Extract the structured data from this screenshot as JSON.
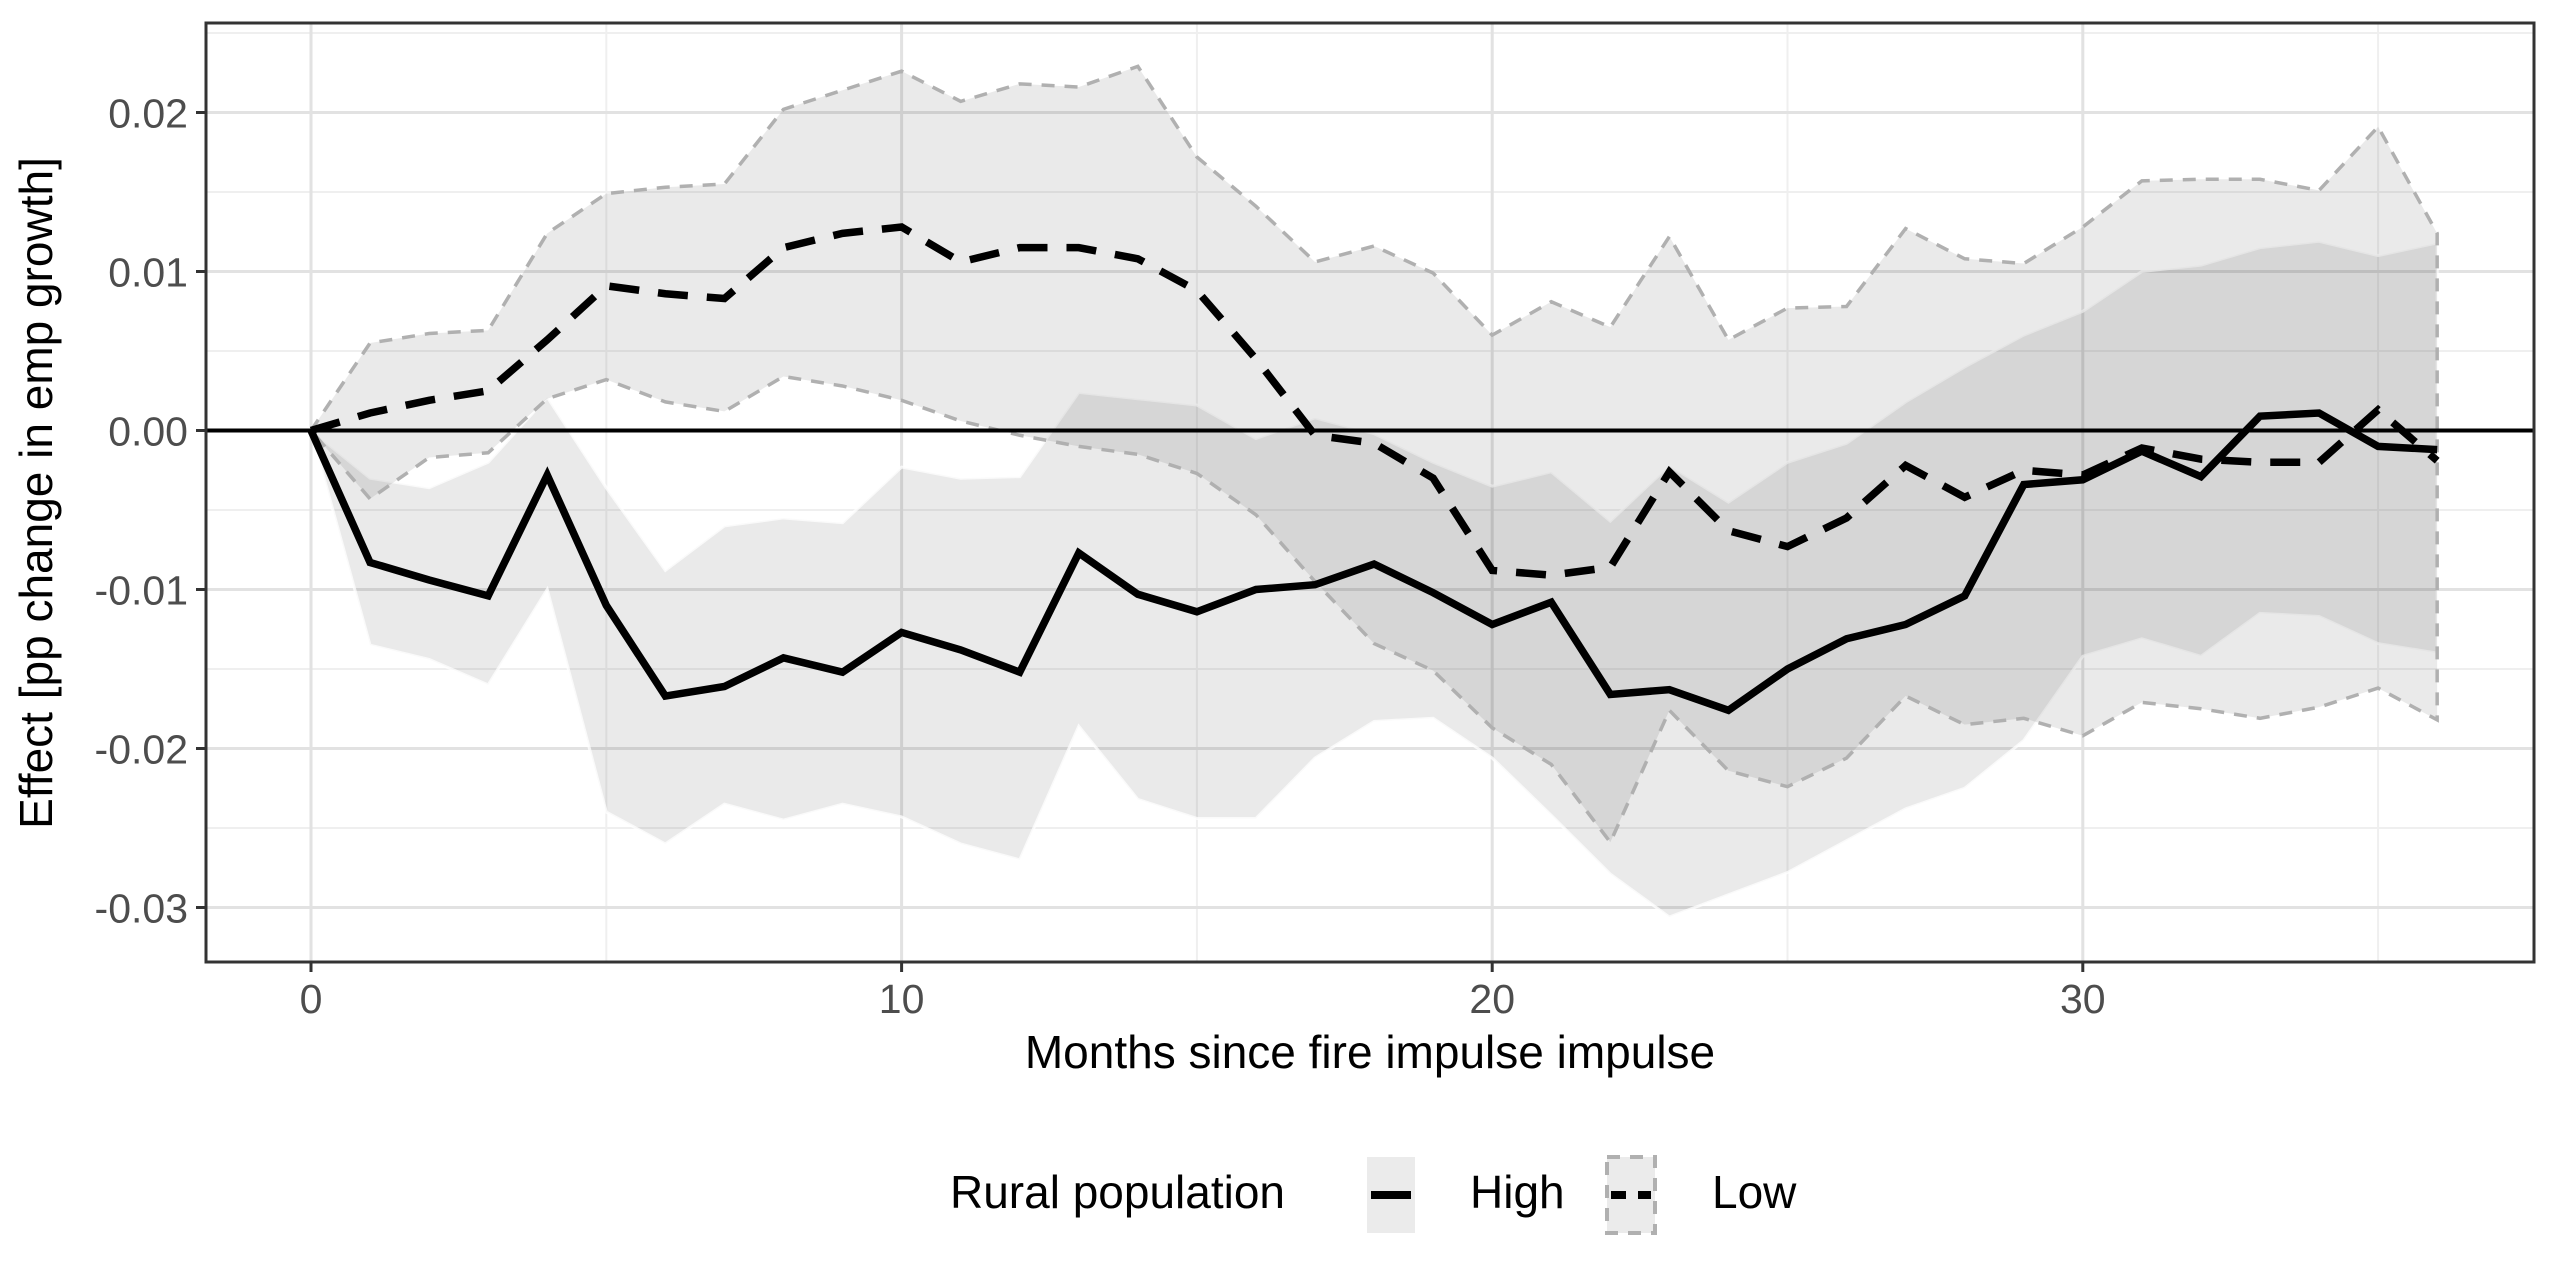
{
  "chart_data": {
    "type": "line",
    "title": "",
    "xlabel": "Months since fire impulse impulse",
    "ylabel": "Effect [pp change in emp growth]",
    "xlim": [
      -1.8,
      37.7
    ],
    "ylim": [
      -0.0334,
      0.0256
    ],
    "grid": "on",
    "zero_reference_line": 0.0,
    "x_ticks": [
      {
        "value": 0,
        "label": "0"
      },
      {
        "value": 10,
        "label": "10"
      },
      {
        "value": 20,
        "label": "20"
      },
      {
        "value": 30,
        "label": "30"
      }
    ],
    "x_minor_ticks": [
      5,
      15,
      25,
      35
    ],
    "y_ticks": [
      {
        "value": 0.02,
        "label": "0.02"
      },
      {
        "value": 0.01,
        "label": "0.01"
      },
      {
        "value": 0.0,
        "label": "0.00"
      },
      {
        "value": -0.01,
        "label": "-0.01"
      },
      {
        "value": -0.02,
        "label": "-0.02"
      },
      {
        "value": -0.03,
        "label": "-0.03"
      }
    ],
    "y_minor_ticks": [
      0.025,
      0.015,
      0.005,
      -0.005,
      -0.015,
      -0.025
    ],
    "legend": {
      "title": "Rural population",
      "position": "bottom",
      "items": [
        {
          "label": "High",
          "line_style": "solid",
          "ribbon_border": "none"
        },
        {
          "label": "Low",
          "line_style": "dashed",
          "ribbon_border": "dashed"
        }
      ]
    },
    "x": [
      0,
      1,
      2,
      3,
      4,
      5,
      6,
      7,
      8,
      9,
      10,
      11,
      12,
      13,
      14,
      15,
      16,
      17,
      18,
      19,
      20,
      21,
      22,
      23,
      24,
      25,
      26,
      27,
      28,
      29,
      30,
      31,
      32,
      33,
      34,
      35,
      36
    ],
    "series": [
      {
        "name": "High",
        "line_style": "solid",
        "values": [
          0.0,
          -0.0083,
          -0.0094,
          -0.0104,
          -0.0028,
          -0.011,
          -0.0167,
          -0.0161,
          -0.0143,
          -0.0152,
          -0.0127,
          -0.0138,
          -0.0152,
          -0.0077,
          -0.0103,
          -0.0114,
          -0.01,
          -0.0097,
          -0.0084,
          -0.0102,
          -0.0122,
          -0.0108,
          -0.0166,
          -0.0163,
          -0.0176,
          -0.015,
          -0.0131,
          -0.0122,
          -0.0104,
          -0.0034,
          -0.0031,
          -0.0013,
          -0.0029,
          0.0009,
          0.0011,
          -0.001,
          -0.0012
        ],
        "ribbon_upper": [
          0.0,
          -0.003,
          -0.0036,
          -0.002,
          0.0021,
          -0.0036,
          -0.0088,
          -0.006,
          -0.0055,
          -0.0058,
          -0.0023,
          -0.003,
          -0.0029,
          0.0024,
          0.002,
          0.0016,
          -0.0005,
          0.0008,
          -0.0002,
          -0.002,
          -0.0035,
          -0.0026,
          -0.0057,
          -0.0022,
          -0.0045,
          -0.002,
          -0.0008,
          0.0018,
          0.004,
          0.006,
          0.0075,
          0.01,
          0.0104,
          0.0115,
          0.0119,
          0.011,
          0.0118
        ],
        "ribbon_lower": [
          0.0,
          -0.0135,
          -0.0144,
          -0.016,
          -0.01,
          -0.024,
          -0.026,
          -0.0235,
          -0.0245,
          -0.0235,
          -0.0243,
          -0.026,
          -0.027,
          -0.0186,
          -0.0232,
          -0.0244,
          -0.0244,
          -0.0206,
          -0.0183,
          -0.0181,
          -0.0206,
          -0.0242,
          -0.0279,
          -0.0306,
          -0.0292,
          -0.0278,
          -0.0258,
          -0.0238,
          -0.0225,
          -0.0195,
          -0.0142,
          -0.0131,
          -0.0142,
          -0.0115,
          -0.0117,
          -0.0134,
          -0.014
        ]
      },
      {
        "name": "Low",
        "line_style": "dashed",
        "values": [
          0.0,
          0.0011,
          0.0019,
          0.0025,
          0.0057,
          0.0091,
          0.0086,
          0.0083,
          0.0115,
          0.0124,
          0.0128,
          0.0106,
          0.0115,
          0.0115,
          0.0108,
          0.0088,
          0.0045,
          -0.0003,
          -0.0008,
          -0.003,
          -0.0088,
          -0.0091,
          -0.0086,
          -0.0026,
          -0.0063,
          -0.0073,
          -0.0055,
          -0.0022,
          -0.0042,
          -0.0025,
          -0.0028,
          -0.0011,
          -0.0018,
          -0.002,
          -0.002,
          0.0013,
          -0.0019
        ],
        "ribbon_upper": [
          0.0,
          0.0055,
          0.0061,
          0.0063,
          0.0124,
          0.0149,
          0.0153,
          0.0155,
          0.0202,
          0.0214,
          0.0226,
          0.0207,
          0.0218,
          0.0216,
          0.0229,
          0.0172,
          0.0141,
          0.0106,
          0.0116,
          0.0099,
          0.006,
          0.0081,
          0.0065,
          0.0122,
          0.0057,
          0.0077,
          0.0078,
          0.0127,
          0.0108,
          0.0105,
          0.0128,
          0.0157,
          0.0158,
          0.0158,
          0.0151,
          0.0191,
          0.0124
        ],
        "ribbon_lower": [
          0.0,
          -0.0043,
          -0.0017,
          -0.0014,
          0.002,
          0.0032,
          0.0018,
          0.0012,
          0.0034,
          0.0028,
          0.0019,
          0.0006,
          -0.0003,
          -0.001,
          -0.0015,
          -0.0027,
          -0.0053,
          -0.0095,
          -0.0134,
          -0.0151,
          -0.0187,
          -0.021,
          -0.0259,
          -0.0176,
          -0.0214,
          -0.0224,
          -0.0206,
          -0.0167,
          -0.0185,
          -0.0181,
          -0.0192,
          -0.0171,
          -0.0175,
          -0.0181,
          -0.0174,
          -0.0162,
          -0.0182
        ]
      }
    ],
    "colors": {
      "line": "#000000",
      "ribbon_fill": "rgba(0,0,0,0.082)",
      "ribbon_border": "#b0b0b0",
      "grid_major": "#e2e2e2",
      "grid_minor": "#efefef",
      "panel_border": "#333333",
      "tick_mark": "#333333",
      "tick_text": "#4d4d4d",
      "zero_line": "#000000"
    }
  }
}
